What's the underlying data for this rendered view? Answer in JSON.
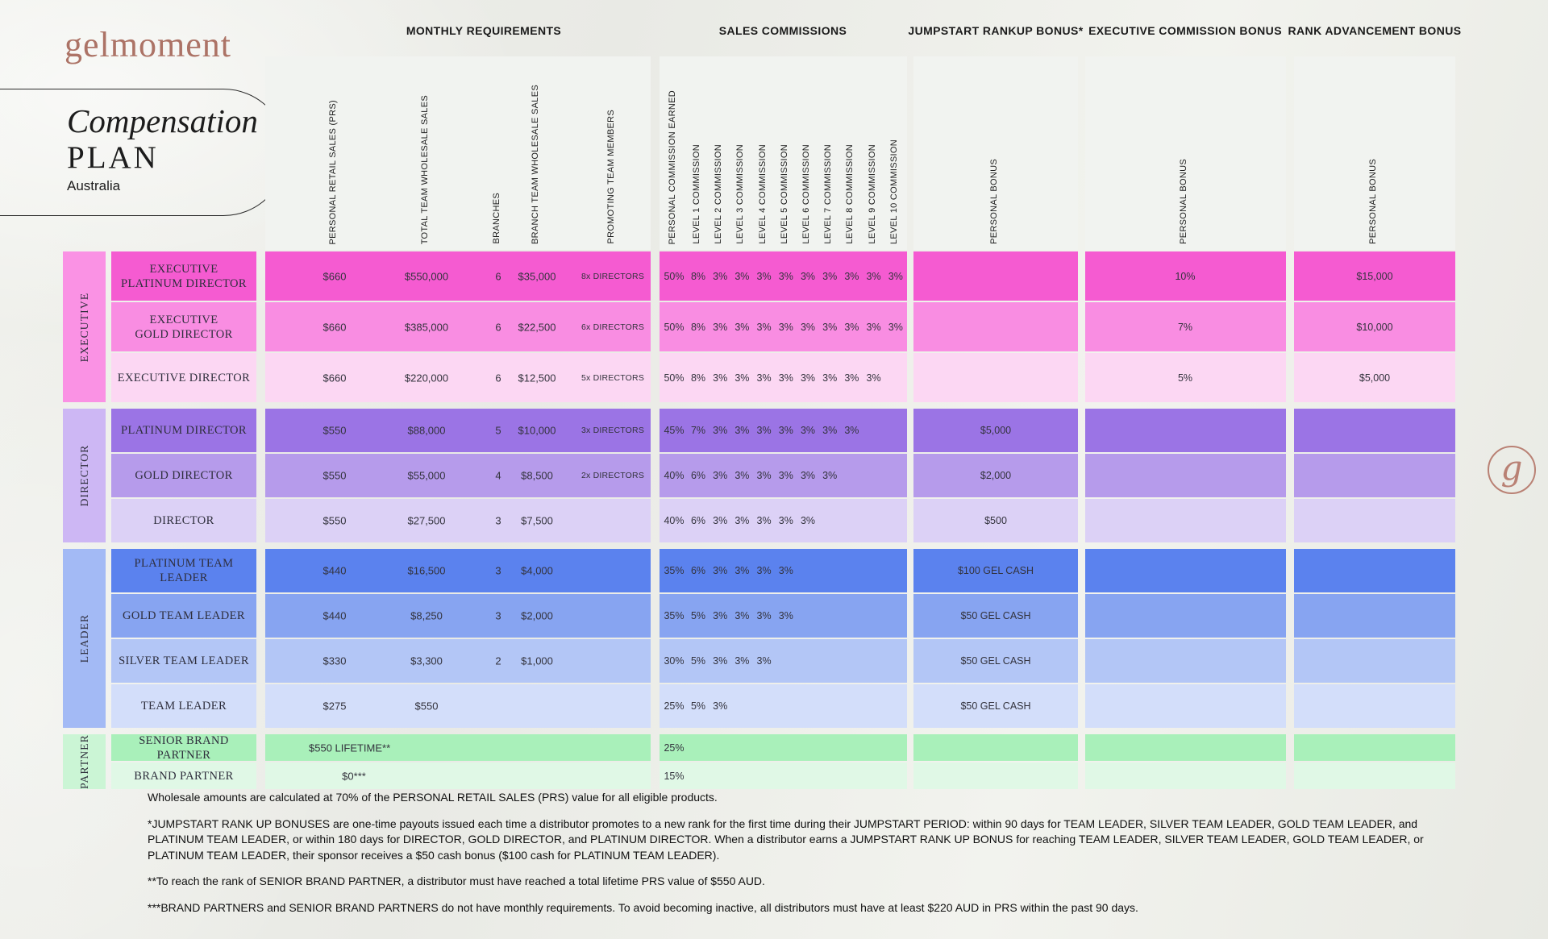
{
  "brand": {
    "logo": "gelmoment",
    "monogram": "g",
    "accent": "#AC7366"
  },
  "title": {
    "line1": "Compensation",
    "line2": "PLAN",
    "line3": "Australia"
  },
  "sections": [
    {
      "id": "mr",
      "label": "MONTHLY REQUIREMENTS"
    },
    {
      "id": "sc",
      "label": "SALES COMMISSIONS"
    },
    {
      "id": "js",
      "label": "JUMPSTART RANKUP BONUS*"
    },
    {
      "id": "ec",
      "label": "EXECUTIVE COMMISSION BONUS"
    },
    {
      "id": "ra",
      "label": "RANK ADVANCEMENT BONUS"
    }
  ],
  "column_headers": {
    "monthly": [
      "PERSONAL RETAIL SALES (PRS)",
      "TOTAL TEAM WHOLESALE SALES",
      "BRANCHES",
      "BRANCH TEAM WHOLESALE SALES",
      "PROMOTING TEAM MEMBERS"
    ],
    "sales": [
      "PERSONAL COMMISSION EARNED",
      "LEVEL 1 COMMISSION",
      "LEVEL 2 COMMISSION",
      "LEVEL 3 COMMISSION",
      "LEVEL 4 COMMISSION",
      "LEVEL 5 COMMISSION",
      "LEVEL 6 COMMISSION",
      "LEVEL 7 COMMISSION",
      "LEVEL 8 COMMISSION",
      "LEVEL 9 COMMISSION",
      "LEVEL 10 COMMISSION"
    ],
    "personal_bonus": "PERSONAL BONUS"
  },
  "table": {
    "groups": [
      {
        "label": "EXECUTIVE",
        "color": "#FA92E4",
        "rows": [
          {
            "name": "EXECUTIVE\nPLATINUM DIRECTOR",
            "color": "#F55BD1",
            "prs": "$660",
            "ttws": "$550,000",
            "branches": "6",
            "btws": "$35,000",
            "ptm": "8x DIRECTORS",
            "comm": [
              "50%",
              "8%",
              "3%",
              "3%",
              "3%",
              "3%",
              "3%",
              "3%",
              "3%",
              "3%",
              "3%"
            ],
            "jumpstart": "",
            "exec_bonus": "10%",
            "rank_adv": "$15,000"
          },
          {
            "name": "EXECUTIVE\nGOLD DIRECTOR",
            "color": "#F98DE2",
            "prs": "$660",
            "ttws": "$385,000",
            "branches": "6",
            "btws": "$22,500",
            "ptm": "6x DIRECTORS",
            "comm": [
              "50%",
              "8%",
              "3%",
              "3%",
              "3%",
              "3%",
              "3%",
              "3%",
              "3%",
              "3%",
              "3%"
            ],
            "jumpstart": "",
            "exec_bonus": "7%",
            "rank_adv": "$10,000"
          },
          {
            "name": "EXECUTIVE DIRECTOR",
            "color": "#FCD7F3",
            "prs": "$660",
            "ttws": "$220,000",
            "branches": "6",
            "btws": "$12,500",
            "ptm": "5x DIRECTORS",
            "comm": [
              "50%",
              "8%",
              "3%",
              "3%",
              "3%",
              "3%",
              "3%",
              "3%",
              "3%",
              "3%"
            ],
            "jumpstart": "",
            "exec_bonus": "5%",
            "rank_adv": "$5,000"
          }
        ]
      },
      {
        "label": "DIRECTOR",
        "color": "#CDB7F4",
        "rows": [
          {
            "name": "PLATINUM DIRECTOR",
            "color": "#9B74E5",
            "prs": "$550",
            "ttws": "$88,000",
            "branches": "5",
            "btws": "$10,000",
            "ptm": "3x DIRECTORS",
            "comm": [
              "45%",
              "7%",
              "3%",
              "3%",
              "3%",
              "3%",
              "3%",
              "3%",
              "3%"
            ],
            "jumpstart": "$5,000",
            "exec_bonus": "",
            "rank_adv": ""
          },
          {
            "name": "GOLD DIRECTOR",
            "color": "#B69BEB",
            "prs": "$550",
            "ttws": "$55,000",
            "branches": "4",
            "btws": "$8,500",
            "ptm": "2x DIRECTORS",
            "comm": [
              "40%",
              "6%",
              "3%",
              "3%",
              "3%",
              "3%",
              "3%",
              "3%"
            ],
            "jumpstart": "$2,000",
            "exec_bonus": "",
            "rank_adv": ""
          },
          {
            "name": "DIRECTOR",
            "color": "#DCD1F6",
            "prs": "$550",
            "ttws": "$27,500",
            "branches": "3",
            "btws": "$7,500",
            "ptm": "",
            "comm": [
              "40%",
              "6%",
              "3%",
              "3%",
              "3%",
              "3%",
              "3%"
            ],
            "jumpstart": "$500",
            "exec_bonus": "",
            "rank_adv": ""
          }
        ]
      },
      {
        "label": "LEADER",
        "color": "#A3BAF5",
        "rows": [
          {
            "name": "PLATINUM TEAM LEADER",
            "color": "#5B82EE",
            "prs": "$440",
            "ttws": "$16,500",
            "branches": "3",
            "btws": "$4,000",
            "ptm": "",
            "comm": [
              "35%",
              "6%",
              "3%",
              "3%",
              "3%",
              "3%"
            ],
            "jumpstart": "$100 GEL CASH",
            "exec_bonus": "",
            "rank_adv": ""
          },
          {
            "name": "GOLD TEAM LEADER",
            "color": "#87A4F1",
            "prs": "$440",
            "ttws": "$8,250",
            "branches": "3",
            "btws": "$2,000",
            "ptm": "",
            "comm": [
              "35%",
              "5%",
              "3%",
              "3%",
              "3%",
              "3%"
            ],
            "jumpstart": "$50 GEL CASH",
            "exec_bonus": "",
            "rank_adv": ""
          },
          {
            "name": "SILVER TEAM LEADER",
            "color": "#B3C6F6",
            "prs": "$330",
            "ttws": "$3,300",
            "branches": "2",
            "btws": "$1,000",
            "ptm": "",
            "comm": [
              "30%",
              "5%",
              "3%",
              "3%",
              "3%"
            ],
            "jumpstart": "$50 GEL CASH",
            "exec_bonus": "",
            "rank_adv": ""
          },
          {
            "name": "TEAM LEADER",
            "color": "#D3DEFA",
            "prs": "$275",
            "ttws": "$550",
            "branches": "",
            "btws": "",
            "ptm": "",
            "comm": [
              "25%",
              "5%",
              "3%"
            ],
            "jumpstart": "$50 GEL CASH",
            "exec_bonus": "",
            "rank_adv": ""
          }
        ]
      },
      {
        "label": "PARTNER",
        "color": "#CBF5D5",
        "rows": [
          {
            "name": "SENIOR BRAND PARTNER",
            "color": "#A9F0BA",
            "mr_text": "$550 LIFETIME**",
            "mr_align": "left",
            "comm": [
              "25%"
            ],
            "jumpstart": "",
            "exec_bonus": "",
            "rank_adv": ""
          },
          {
            "name": "BRAND PARTNER",
            "color": "#E0F8E6",
            "mr_text": "$0***",
            "mr_align": "center",
            "comm": [
              "15%"
            ],
            "jumpstart": "",
            "exec_bonus": "",
            "rank_adv": ""
          }
        ]
      }
    ]
  },
  "notes": [
    "Wholesale amounts are calculated at 70% of the PERSONAL RETAIL SALES (PRS) value for all eligible products.",
    "*JUMPSTART RANK UP BONUSES are one-time payouts issued each time a distributor promotes to a new rank for the first time during their JUMPSTART PERIOD: within 90 days for TEAM LEADER, SILVER TEAM LEADER, GOLD TEAM LEADER, and PLATINUM TEAM LEADER, or within 180 days for DIRECTOR, GOLD DIRECTOR, and PLATINUM DIRECTOR. When a distributor earns a JUMPSTART RANK UP BONUS for reaching TEAM LEADER, SILVER TEAM LEADER, GOLD TEAM LEADER, or PLATINUM TEAM LEADER, their sponsor receives a $50 cash bonus ($100 cash for PLATINUM TEAM LEADER).",
    "**To reach the rank of SENIOR BRAND PARTNER, a distributor must have reached a total lifetime PRS value of $550 AUD.",
    "***BRAND PARTNERS and SENIOR BRAND PARTNERS do not have monthly requirements. To avoid becoming inactive, all distributors must have at least $220 AUD in PRS within the past 90 days."
  ]
}
